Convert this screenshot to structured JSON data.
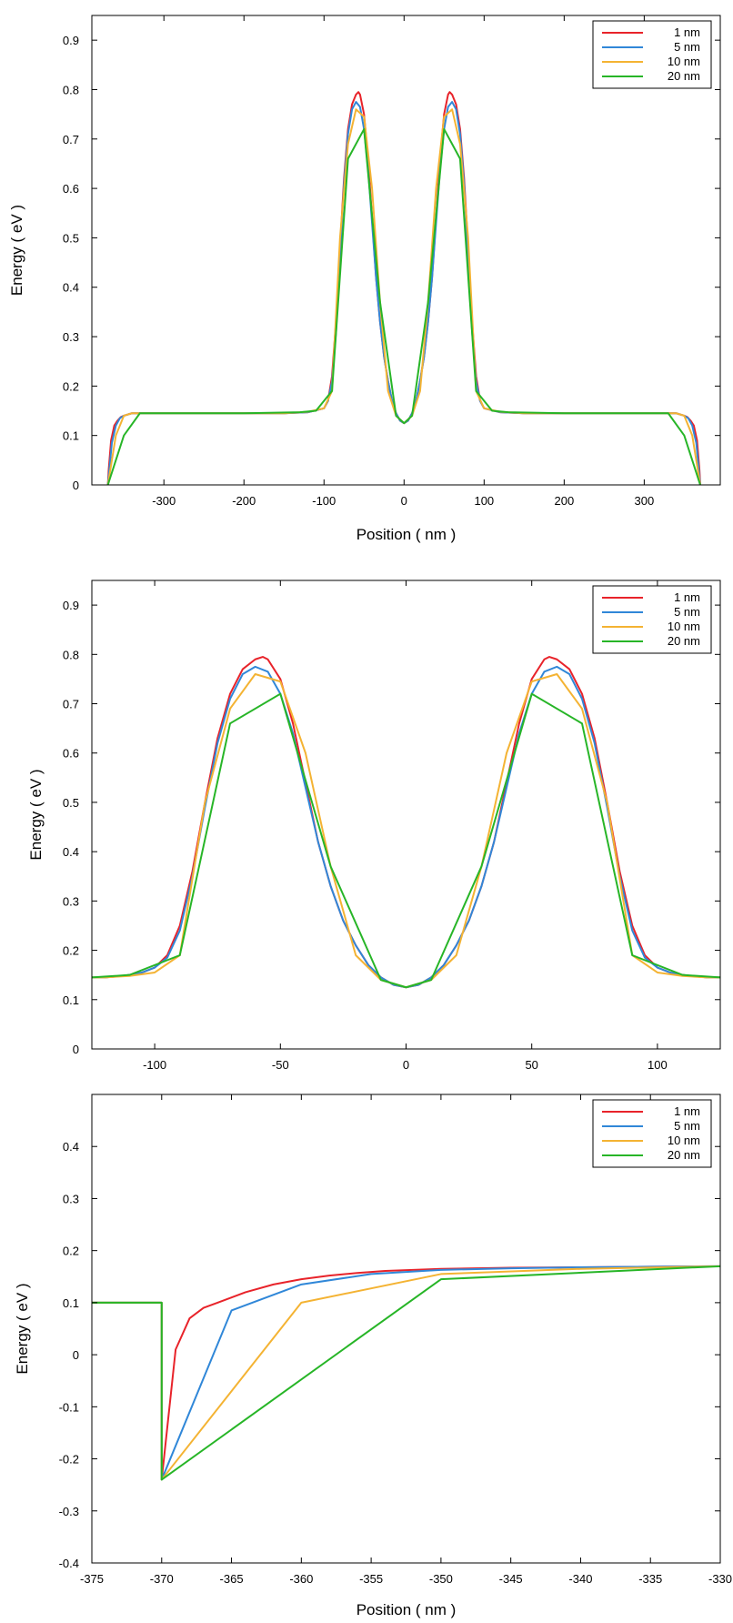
{
  "chart_data": [
    {
      "type": "line",
      "title": "",
      "xlabel": "Position ( nm )",
      "ylabel": "Energy ( eV )",
      "xlim": [
        -390,
        395
      ],
      "ylim": [
        0,
        0.95
      ],
      "xticks": [
        -300,
        -200,
        -100,
        0,
        100,
        200,
        300
      ],
      "yticks": [
        0,
        0.1,
        0.2,
        0.3,
        0.4,
        0.5,
        0.6,
        0.7,
        0.8,
        0.9
      ],
      "grid": false,
      "legend_position": "top-right",
      "series": [
        {
          "name": "1 nm",
          "color": "#e8232a",
          "x": [
            -370,
            -369,
            -366,
            -362,
            -358,
            -354,
            -350,
            -340,
            -300,
            -200,
            -150,
            -120,
            -100,
            -95,
            -90,
            -85,
            -80,
            -75,
            -70,
            -65,
            -60,
            -57,
            -55,
            -50,
            -45,
            -40,
            -35,
            -30,
            -25,
            -20,
            -15,
            -10,
            -5,
            0,
            5,
            10,
            15,
            20,
            25,
            30,
            35,
            40,
            45,
            50,
            55,
            57,
            60,
            65,
            70,
            75,
            80,
            85,
            90,
            95,
            100,
            120,
            150,
            200,
            300,
            340,
            350,
            354,
            358,
            362,
            366,
            369,
            370
          ],
          "y": [
            0,
            0.03,
            0.09,
            0.12,
            0.13,
            0.137,
            0.14,
            0.145,
            0.145,
            0.145,
            0.145,
            0.147,
            0.155,
            0.17,
            0.22,
            0.33,
            0.48,
            0.62,
            0.72,
            0.77,
            0.79,
            0.795,
            0.79,
            0.75,
            0.66,
            0.54,
            0.42,
            0.33,
            0.26,
            0.21,
            0.17,
            0.145,
            0.13,
            0.125,
            0.13,
            0.145,
            0.17,
            0.21,
            0.26,
            0.33,
            0.42,
            0.54,
            0.66,
            0.75,
            0.79,
            0.795,
            0.79,
            0.77,
            0.72,
            0.62,
            0.48,
            0.33,
            0.22,
            0.17,
            0.155,
            0.147,
            0.145,
            0.145,
            0.145,
            0.145,
            0.14,
            0.137,
            0.13,
            0.12,
            0.09,
            0.03,
            0
          ]
        },
        {
          "name": "5 nm",
          "color": "#3087d8",
          "x": [
            -370,
            -365,
            -360,
            -355,
            -350,
            -340,
            -300,
            -200,
            -150,
            -120,
            -100,
            -95,
            -90,
            -85,
            -80,
            -75,
            -70,
            -65,
            -60,
            -55,
            -50,
            -45,
            -40,
            -35,
            -30,
            -25,
            -20,
            -15,
            -10,
            -5,
            0,
            5,
            10,
            15,
            20,
            25,
            30,
            35,
            40,
            45,
            50,
            55,
            60,
            65,
            70,
            75,
            80,
            85,
            90,
            95,
            100,
            120,
            150,
            200,
            300,
            340,
            350,
            355,
            360,
            365,
            370
          ],
          "y": [
            0,
            0.085,
            0.12,
            0.135,
            0.14,
            0.145,
            0.145,
            0.145,
            0.145,
            0.147,
            0.155,
            0.17,
            0.21,
            0.31,
            0.46,
            0.61,
            0.71,
            0.76,
            0.775,
            0.765,
            0.72,
            0.64,
            0.53,
            0.42,
            0.33,
            0.26,
            0.21,
            0.17,
            0.145,
            0.13,
            0.125,
            0.13,
            0.145,
            0.17,
            0.21,
            0.26,
            0.33,
            0.42,
            0.53,
            0.64,
            0.72,
            0.765,
            0.775,
            0.76,
            0.71,
            0.61,
            0.46,
            0.31,
            0.21,
            0.17,
            0.155,
            0.147,
            0.145,
            0.145,
            0.145,
            0.145,
            0.14,
            0.135,
            0.12,
            0.085,
            0
          ]
        },
        {
          "name": "10 nm",
          "color": "#f4b333",
          "x": [
            -370,
            -360,
            -350,
            -340,
            -300,
            -200,
            -150,
            -120,
            -100,
            -90,
            -80,
            -70,
            -60,
            -50,
            -40,
            -30,
            -20,
            -10,
            0,
            10,
            20,
            30,
            40,
            50,
            60,
            70,
            80,
            90,
            100,
            120,
            150,
            200,
            300,
            340,
            350,
            360,
            370
          ],
          "y": [
            0,
            0.1,
            0.14,
            0.145,
            0.145,
            0.145,
            0.145,
            0.148,
            0.155,
            0.19,
            0.5,
            0.69,
            0.76,
            0.745,
            0.6,
            0.37,
            0.19,
            0.14,
            0.125,
            0.14,
            0.19,
            0.37,
            0.6,
            0.745,
            0.76,
            0.69,
            0.5,
            0.19,
            0.155,
            0.148,
            0.145,
            0.145,
            0.145,
            0.145,
            0.14,
            0.1,
            0
          ]
        },
        {
          "name": "20 nm",
          "color": "#27b527",
          "x": [
            -370,
            -350,
            -330,
            -310,
            -200,
            -130,
            -110,
            -90,
            -70,
            -50,
            -30,
            -10,
            0,
            10,
            30,
            50,
            70,
            90,
            110,
            130,
            200,
            310,
            330,
            350,
            370
          ],
          "y": [
            0,
            0.1,
            0.145,
            0.145,
            0.145,
            0.147,
            0.15,
            0.19,
            0.66,
            0.72,
            0.37,
            0.14,
            0.125,
            0.14,
            0.37,
            0.72,
            0.66,
            0.19,
            0.15,
            0.147,
            0.145,
            0.145,
            0.145,
            0.1,
            0
          ]
        }
      ]
    },
    {
      "type": "line",
      "title": "",
      "xlabel": "",
      "ylabel": "Energy ( eV )",
      "xlim": [
        -125,
        125
      ],
      "ylim": [
        0,
        0.95
      ],
      "xticks": [
        -100,
        -50,
        0,
        50,
        100
      ],
      "yticks": [
        0,
        0.1,
        0.2,
        0.3,
        0.4,
        0.5,
        0.6,
        0.7,
        0.8,
        0.9
      ],
      "grid": false,
      "legend_position": "top-right",
      "series": [
        {
          "name": "1 nm",
          "color": "#e8232a",
          "x": [
            -125,
            -120,
            -115,
            -110,
            -105,
            -100,
            -95,
            -90,
            -85,
            -80,
            -75,
            -70,
            -65,
            -60,
            -57,
            -55,
            -50,
            -45,
            -40,
            -35,
            -30,
            -25,
            -20,
            -15,
            -10,
            -5,
            0,
            5,
            10,
            15,
            20,
            25,
            30,
            35,
            40,
            45,
            50,
            55,
            57,
            60,
            65,
            70,
            75,
            80,
            85,
            90,
            95,
            100,
            105,
            110,
            115,
            120,
            125
          ],
          "y": [
            0.145,
            0.145,
            0.147,
            0.15,
            0.155,
            0.165,
            0.19,
            0.25,
            0.36,
            0.5,
            0.63,
            0.72,
            0.77,
            0.79,
            0.795,
            0.79,
            0.75,
            0.66,
            0.54,
            0.42,
            0.33,
            0.26,
            0.21,
            0.17,
            0.145,
            0.13,
            0.125,
            0.13,
            0.145,
            0.17,
            0.21,
            0.26,
            0.33,
            0.42,
            0.54,
            0.66,
            0.75,
            0.79,
            0.795,
            0.79,
            0.77,
            0.72,
            0.63,
            0.5,
            0.36,
            0.25,
            0.19,
            0.165,
            0.155,
            0.15,
            0.147,
            0.145,
            0.145
          ]
        },
        {
          "name": "5 nm",
          "color": "#3087d8",
          "x": [
            -125,
            -120,
            -115,
            -110,
            -105,
            -100,
            -95,
            -90,
            -85,
            -80,
            -75,
            -70,
            -65,
            -60,
            -55,
            -50,
            -45,
            -40,
            -35,
            -30,
            -25,
            -20,
            -15,
            -10,
            -5,
            0,
            5,
            10,
            15,
            20,
            25,
            30,
            35,
            40,
            45,
            50,
            55,
            60,
            65,
            70,
            75,
            80,
            85,
            90,
            95,
            100,
            105,
            110,
            115,
            120,
            125
          ],
          "y": [
            0.145,
            0.145,
            0.147,
            0.15,
            0.155,
            0.165,
            0.185,
            0.24,
            0.35,
            0.49,
            0.62,
            0.71,
            0.76,
            0.775,
            0.765,
            0.72,
            0.64,
            0.53,
            0.42,
            0.33,
            0.26,
            0.21,
            0.17,
            0.145,
            0.13,
            0.125,
            0.13,
            0.145,
            0.17,
            0.21,
            0.26,
            0.33,
            0.42,
            0.53,
            0.64,
            0.72,
            0.765,
            0.775,
            0.76,
            0.71,
            0.62,
            0.49,
            0.35,
            0.24,
            0.185,
            0.165,
            0.155,
            0.15,
            0.147,
            0.145,
            0.145
          ]
        },
        {
          "name": "10 nm",
          "color": "#f4b333",
          "x": [
            -125,
            -120,
            -110,
            -100,
            -90,
            -80,
            -70,
            -60,
            -50,
            -40,
            -30,
            -20,
            -10,
            0,
            10,
            20,
            30,
            40,
            50,
            60,
            70,
            80,
            90,
            100,
            110,
            120,
            125
          ],
          "y": [
            0.145,
            0.145,
            0.148,
            0.155,
            0.19,
            0.5,
            0.69,
            0.76,
            0.745,
            0.6,
            0.37,
            0.19,
            0.14,
            0.125,
            0.14,
            0.19,
            0.37,
            0.6,
            0.745,
            0.76,
            0.69,
            0.5,
            0.19,
            0.155,
            0.148,
            0.145,
            0.145
          ]
        },
        {
          "name": "20 nm",
          "color": "#27b527",
          "x": [
            -125,
            -110,
            -90,
            -70,
            -50,
            -30,
            -10,
            0,
            10,
            30,
            50,
            70,
            90,
            110,
            125
          ],
          "y": [
            0.145,
            0.15,
            0.19,
            0.66,
            0.72,
            0.37,
            0.14,
            0.125,
            0.14,
            0.37,
            0.72,
            0.66,
            0.19,
            0.15,
            0.145
          ]
        }
      ]
    },
    {
      "type": "line",
      "title": "",
      "xlabel": "Position ( nm )",
      "ylabel": "Energy ( eV )",
      "xlim": [
        -375,
        -330
      ],
      "ylim": [
        -0.4,
        0.5
      ],
      "xticks": [
        -375,
        -370,
        -365,
        -360,
        -355,
        -350,
        -345,
        -340,
        -335,
        -330
      ],
      "yticks": [
        -0.4,
        -0.3,
        -0.2,
        -0.1,
        0,
        0.1,
        0.2,
        0.3,
        0.4
      ],
      "grid": false,
      "legend_position": "top-right",
      "series": [
        {
          "name": "1 nm",
          "color": "#e8232a",
          "x": [
            -375,
            -370,
            -370,
            -369,
            -368,
            -367,
            -366,
            -365,
            -364,
            -362,
            -360,
            -358,
            -356,
            -354,
            -352,
            -350,
            -345,
            -340,
            -335,
            -330
          ],
          "y": [
            0.1,
            0.1,
            -0.24,
            0.01,
            0.07,
            0.09,
            0.1,
            0.11,
            0.12,
            0.135,
            0.145,
            0.152,
            0.157,
            0.161,
            0.163,
            0.165,
            0.167,
            0.168,
            0.169,
            0.17
          ]
        },
        {
          "name": "5 nm",
          "color": "#3087d8",
          "x": [
            -375,
            -370,
            -370,
            -365,
            -360,
            -355,
            -350,
            -345,
            -340,
            -335,
            -330
          ],
          "y": [
            0.1,
            0.1,
            -0.24,
            0.085,
            0.135,
            0.155,
            0.163,
            0.166,
            0.168,
            0.169,
            0.17
          ]
        },
        {
          "name": "10 nm",
          "color": "#f4b333",
          "x": [
            -375,
            -370,
            -370,
            -360,
            -350,
            -340,
            -330
          ],
          "y": [
            0.1,
            0.1,
            -0.24,
            0.1,
            0.155,
            0.165,
            0.17
          ]
        },
        {
          "name": "20 nm",
          "color": "#27b527",
          "x": [
            -375,
            -370,
            -370,
            -350,
            -330
          ],
          "y": [
            0.1,
            0.1,
            -0.24,
            0.145,
            0.17
          ]
        }
      ]
    }
  ]
}
